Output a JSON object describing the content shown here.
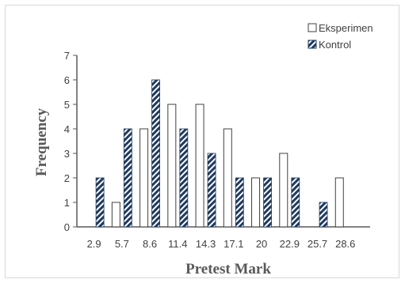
{
  "chart_data": {
    "type": "bar",
    "title": "",
    "xlabel": "Pretest Mark",
    "ylabel": "Frequency",
    "categories": [
      "2.9",
      "5.7",
      "8.6",
      "11.4",
      "14.3",
      "17.1",
      "20",
      "22.9",
      "25.7",
      "28.6"
    ],
    "series": [
      {
        "name": "Eksperimen",
        "values": [
          0,
          1,
          4,
          5,
          5,
          4,
          2,
          3,
          0,
          2
        ]
      },
      {
        "name": "Kontrol",
        "values": [
          2,
          4,
          6,
          4,
          3,
          2,
          2,
          2,
          1,
          0
        ]
      }
    ],
    "ylim": [
      0,
      7
    ],
    "yticks": [
      "0",
      "1",
      "2",
      "3",
      "4",
      "5",
      "6",
      "7"
    ],
    "grid": false,
    "legend_position": "top-right",
    "colors": {
      "eksperimen_fill": "#ffffff",
      "eksperimen_stroke": "#404040",
      "kontrol_stripe": "#1f3a5f",
      "axis": "#595959"
    }
  }
}
